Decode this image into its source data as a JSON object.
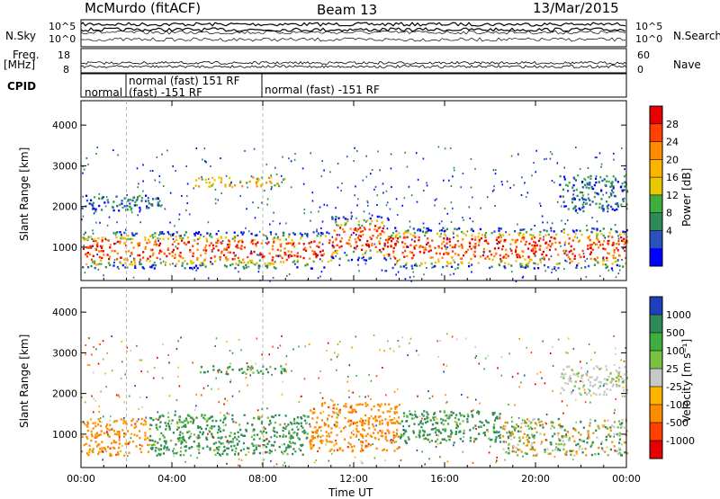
{
  "header": {
    "station": "McMurdo (fitACF)",
    "beam": "Beam 13",
    "date": "13/Mar/2015"
  },
  "top_panels": {
    "nsky_label": "N.Sky",
    "nsky_ticks": [
      "10^5",
      "10^0"
    ],
    "nsearch_label": "N.Search",
    "nsearch_ticks": [
      "10^5",
      "10^0"
    ],
    "freq_label": "Freq.",
    "freq_unit": "[MHz]",
    "freq_ticks": [
      "18",
      "8"
    ],
    "nave_label": "Nave",
    "nave_ticks": [
      "60",
      "0"
    ],
    "cpid_label": "CPID",
    "cpid_segments": [
      "normal",
      "normal (fast) 151 RF",
      "(fast) -151 RF",
      "normal (fast) -151 RF"
    ]
  },
  "chart_data": [
    {
      "type": "heatmap",
      "name": "power-panel",
      "x_ticks": [
        "00:00",
        "04:00",
        "08:00",
        "12:00",
        "16:00",
        "20:00",
        "00:00"
      ],
      "xlim_hours": [
        0,
        24
      ],
      "ylabel": "Slant Range [km]",
      "y_ticks": [
        1000,
        2000,
        3000,
        4000
      ],
      "ylim": [
        180,
        4600
      ],
      "colorbar_label": "Power [dB]",
      "colorbar_ticks": [
        "28",
        "24",
        "20",
        "16",
        "12",
        "8",
        "4"
      ],
      "colorbar_colors": [
        "#e60000",
        "#ff4000",
        "#ff8c00",
        "#ffb400",
        "#e8c800",
        "#3fae3f",
        "#2e8b57",
        "#2a52be",
        "#0000ff"
      ],
      "bands": [
        {
          "h0": 0.0,
          "h1": 11.0,
          "r0": 500,
          "r1": 1400,
          "level": "high"
        },
        {
          "h0": 11.0,
          "h1": 13.5,
          "r0": 700,
          "r1": 1800,
          "level": "high"
        },
        {
          "h0": 13.5,
          "h1": 24.0,
          "r0": 500,
          "r1": 1500,
          "level": "high"
        },
        {
          "h0": 0.0,
          "h1": 3.5,
          "r0": 1900,
          "r1": 2300,
          "level": "low"
        },
        {
          "h0": 5.0,
          "h1": 9.0,
          "r0": 2500,
          "r1": 2750,
          "level": "mid"
        },
        {
          "h0": 21.0,
          "h1": 24.0,
          "r0": 1900,
          "r1": 2800,
          "level": "low"
        }
      ]
    },
    {
      "type": "heatmap",
      "name": "velocity-panel",
      "x_ticks": [
        "00:00",
        "04:00",
        "08:00",
        "12:00",
        "16:00",
        "20:00",
        "00:00"
      ],
      "xlim_hours": [
        0,
        24
      ],
      "xlabel": "Time UT",
      "ylabel": "Slant Range [km]",
      "y_ticks": [
        1000,
        2000,
        3000,
        4000
      ],
      "ylim": [
        180,
        4600
      ],
      "colorbar_label": "Velocity [m s⁻¹]",
      "colorbar_ticks": [
        "1000",
        "500",
        "100",
        "25",
        "-25",
        "-100",
        "-500",
        "-1000"
      ],
      "colorbar_colors": [
        "#1f3fbf",
        "#2e8b57",
        "#3fae3f",
        "#7ac143",
        "#c8c8c8",
        "#ffb400",
        "#ff8c00",
        "#ff4000",
        "#e60000"
      ],
      "bands": [
        {
          "h0": 0.0,
          "h1": 3.0,
          "r0": 500,
          "r1": 1400,
          "level": "neg"
        },
        {
          "h0": 3.0,
          "h1": 10.0,
          "r0": 500,
          "r1": 1500,
          "level": "pos"
        },
        {
          "h0": 10.0,
          "h1": 14.0,
          "r0": 600,
          "r1": 1800,
          "level": "neg"
        },
        {
          "h0": 14.0,
          "h1": 18.5,
          "r0": 800,
          "r1": 1600,
          "level": "pos"
        },
        {
          "h0": 18.5,
          "h1": 24.0,
          "r0": 500,
          "r1": 1400,
          "level": "mix"
        },
        {
          "h0": 5.0,
          "h1": 9.0,
          "r0": 2500,
          "r1": 2700,
          "level": "pos"
        },
        {
          "h0": 21.0,
          "h1": 24.0,
          "r0": 2000,
          "r1": 2700,
          "level": "grey"
        }
      ]
    }
  ]
}
